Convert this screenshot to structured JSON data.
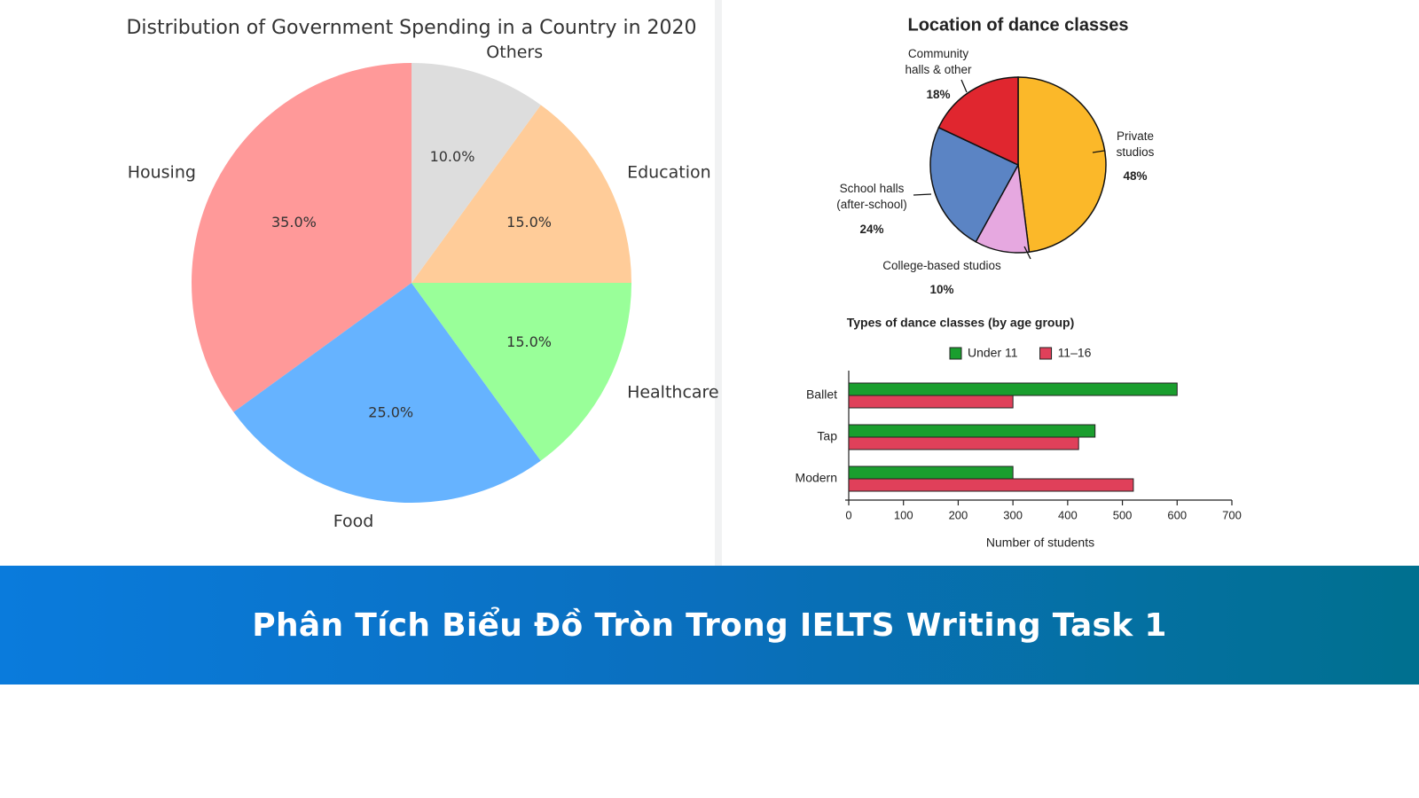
{
  "chart_data": [
    {
      "type": "pie",
      "title": "Distribution of Government Spending in a Country in 2020",
      "categories": [
        "Housing",
        "Food",
        "Healthcare",
        "Education",
        "Others"
      ],
      "values": [
        35,
        25,
        15,
        15,
        10
      ],
      "value_labels": [
        "35.0%",
        "25.0%",
        "15.0%",
        "15.0%",
        "10.0%"
      ],
      "colors": [
        "#ff9999",
        "#66b3ff",
        "#99ff99",
        "#ffcc99",
        "#dddddd"
      ],
      "counterclock": true
    },
    {
      "type": "pie",
      "title": "Location of dance classes",
      "categories": [
        "Private studios",
        "College-based studios",
        "School halls (after-school)",
        "Community halls & other"
      ],
      "values": [
        48,
        10,
        24,
        18
      ],
      "value_labels": [
        "48%",
        "10%",
        "24%",
        "18%"
      ],
      "colors": [
        "#fbb829",
        "#e6a8e0",
        "#5b84c4",
        "#e0262f"
      ],
      "counterclock": false
    },
    {
      "type": "barh",
      "title": "Types of dance classes (by age group)",
      "categories": [
        "Ballet",
        "Tap",
        "Modern"
      ],
      "series": [
        {
          "name": "Under 11",
          "color": "#1a9e2e",
          "values": [
            600,
            450,
            300
          ]
        },
        {
          "name": "11–16",
          "color": "#e0405a",
          "values": [
            300,
            420,
            520
          ]
        }
      ],
      "xlabel": "Number of students",
      "xlim": [
        0,
        700
      ],
      "xticks": [
        0,
        100,
        200,
        300,
        400,
        500,
        600,
        700
      ]
    }
  ],
  "banner": {
    "title": "Phân Tích Biểu Đồ Tròn Trong IELTS Writing Task 1"
  }
}
